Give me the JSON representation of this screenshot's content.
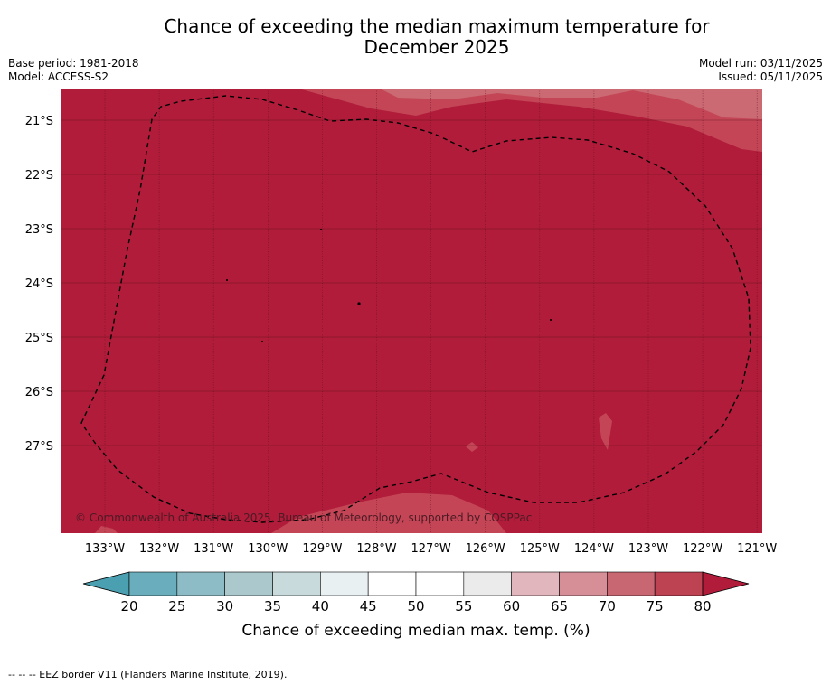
{
  "title_line1": "Chance of exceeding the median maximum temperature for",
  "title_line2": "December 2025",
  "base_period": "Base period: 1981-2018",
  "model": "Model: ACCESS-S2",
  "model_run": "Model run: 03/11/2025",
  "issued": "Issued: 05/11/2025",
  "copyright": "© Commonwealth of Australia 2025, Bureau of Meteorology, supported by COSPPac",
  "lat_labels": [
    "21°S",
    "22°S",
    "23°S",
    "24°S",
    "25°S",
    "26°S",
    "27°S"
  ],
  "lon_labels": [
    "133°W",
    "132°W",
    "131°W",
    "130°W",
    "129°W",
    "128°W",
    "127°W",
    "126°W",
    "125°W",
    "124°W",
    "123°W",
    "122°W",
    "121°W"
  ],
  "colorbar": {
    "ticks": [
      "20",
      "25",
      "30",
      "35",
      "40",
      "45",
      "50",
      "55",
      "60",
      "65",
      "70",
      "75",
      "80"
    ],
    "colors": [
      "#6aaebd",
      "#8dbbc6",
      "#abc8cd",
      "#c9dadd",
      "#e9f0f2",
      "#ffffff",
      "#ffffff",
      "#ebebeb",
      "#e1b6bd",
      "#d68e97",
      "#c86672",
      "#bd4353"
    ],
    "under_color": "#4a9fb0",
    "over_color": "#b01c3a",
    "label": "Chance of exceeding median max. temp. (%)"
  },
  "map_colors": {
    "base": "#b01c3a",
    "band_75": "#c44656",
    "band_70": "#cb6a73"
  },
  "footnote": "--  --  -- EEZ border V11 (Flanders Marine Institute, 2019)."
}
